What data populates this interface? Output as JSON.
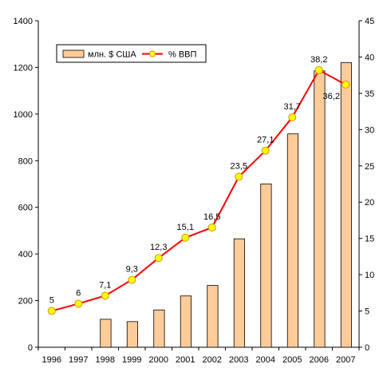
{
  "chart_data": {
    "type": "bar",
    "categories": [
      "1996",
      "1997",
      "1998",
      "1999",
      "2000",
      "2001",
      "2002",
      "2003",
      "2004",
      "2005",
      "2006",
      "2007"
    ],
    "series": [
      {
        "name": "млн. $ США",
        "type": "bar",
        "axis": "left",
        "values": [
          0,
          0,
          120,
          110,
          160,
          220,
          265,
          465,
          700,
          915,
          1185,
          1220
        ]
      },
      {
        "name": "% ВВП",
        "type": "line",
        "axis": "right",
        "values": [
          5,
          6,
          7.1,
          9.3,
          12.3,
          15.1,
          16.5,
          23.5,
          27.1,
          31.7,
          38.2,
          36.2
        ],
        "labels": [
          "5",
          "6",
          "7,1",
          "9,3",
          "12,3",
          "15,1",
          "16,5",
          "23,5",
          "27,1",
          "31,7",
          "38,2",
          "36,2"
        ]
      }
    ],
    "y_left": {
      "ylim": [
        0,
        1400
      ],
      "ticks": [
        "0",
        "200",
        "400",
        "600",
        "800",
        "1000",
        "1200",
        "1400"
      ]
    },
    "y_right": {
      "ylim": [
        0,
        45
      ],
      "ticks": [
        "0",
        "5",
        "10",
        "15",
        "20",
        "25",
        "30",
        "35",
        "40",
        "45"
      ]
    },
    "grid": false,
    "legend_position": "top-left",
    "colors": {
      "bar_fill": "#FFCC99",
      "bar_stroke": "#000000",
      "line": "#FF0000",
      "marker_fill": "#FFFF00",
      "marker_stroke": "#CC9900"
    }
  }
}
